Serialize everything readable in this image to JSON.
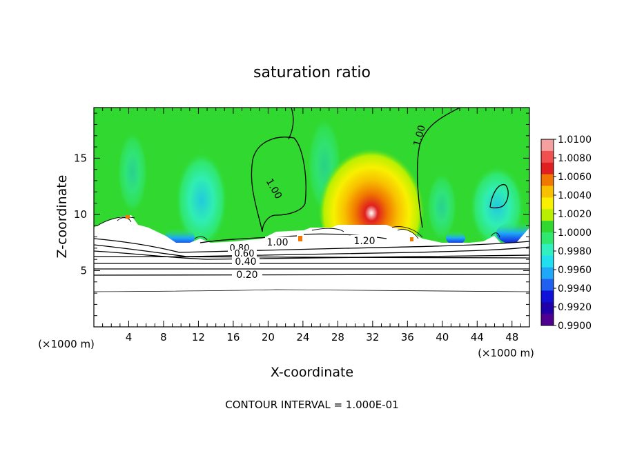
{
  "chart_data": {
    "type": "heatmap",
    "title": "saturation ratio",
    "xlabel": "X-coordinate",
    "ylabel": "Z-coordinate",
    "x_unit_label": "(×1000 m)",
    "x_unit_label_right": "(×1000 m)",
    "xlim": [
      0,
      50
    ],
    "ylim": [
      0,
      19.5
    ],
    "x_ticks": [
      4,
      8,
      12,
      16,
      20,
      24,
      28,
      32,
      36,
      40,
      44,
      48
    ],
    "y_ticks": [
      5,
      10,
      15
    ],
    "colorbar": {
      "min": 0.99,
      "max": 1.01,
      "tick_labels": [
        "1.0100",
        "1.0080",
        "1.0060",
        "1.0040",
        "1.0020",
        "1.0000",
        "0.9980",
        "0.9960",
        "0.9940",
        "0.9920",
        "0.9900"
      ],
      "colors": [
        "#f4a0a0",
        "#f05050",
        "#e02020",
        "#f07800",
        "#f8c000",
        "#f8f000",
        "#b8f000",
        "#30d830",
        "#30e870",
        "#30f0c0",
        "#20e0f0",
        "#20a8f8",
        "#2060f0",
        "#1010d8",
        "#2000a8",
        "#500090"
      ]
    },
    "contour_interval": "CONTOUR INTERVAL = 1.000E-01",
    "contour_labels": [
      "1.00",
      "1.00",
      "1.00",
      "1.20",
      "0.80",
      "0.60",
      "0.40",
      "0.20"
    ],
    "features": {
      "background_value": 1.0,
      "high_max": {
        "x": 31,
        "z": 10,
        "value": 1.008
      },
      "low_columns": [
        {
          "x": 12,
          "z": 11.5,
          "value": 0.997
        },
        {
          "x": 46,
          "z": 11.5,
          "value": 0.997
        }
      ]
    }
  }
}
